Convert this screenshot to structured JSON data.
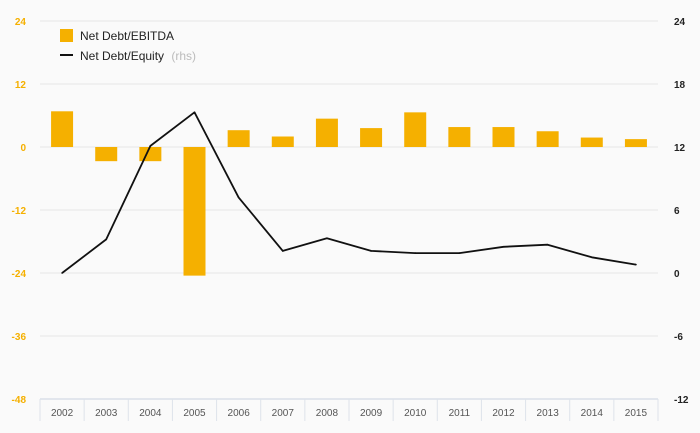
{
  "chart_data": {
    "type": "bar",
    "categories": [
      "2002",
      "2003",
      "2004",
      "2005",
      "2006",
      "2007",
      "2008",
      "2009",
      "2010",
      "2011",
      "2012",
      "2013",
      "2014",
      "2015"
    ],
    "series": [
      {
        "name": "Net Debt/EBITDA",
        "type": "bar",
        "axis": "left",
        "color": "#f5b000",
        "values": [
          6.8,
          -2.7,
          -2.7,
          -24.5,
          3.2,
          2.0,
          5.4,
          3.6,
          6.6,
          3.8,
          3.8,
          3.0,
          1.8,
          1.5
        ]
      },
      {
        "name": "Net Debt/Equity",
        "type": "line",
        "axis": "right",
        "color": "#111111",
        "values": [
          0.0,
          3.2,
          12.1,
          15.3,
          7.2,
          2.1,
          3.3,
          2.1,
          1.9,
          1.9,
          2.5,
          2.7,
          1.5,
          0.8
        ]
      }
    ],
    "legend": [
      {
        "label": "Net Debt/EBITDA",
        "note": ""
      },
      {
        "label": "Net Debt/Equity",
        "note": "(rhs)"
      }
    ],
    "y_left": {
      "ticks": [
        "24",
        "12",
        "0",
        "-12",
        "-24",
        "-36",
        "-48"
      ],
      "ylim": [
        -48,
        24
      ],
      "color": "#f5b000"
    },
    "y_right": {
      "ticks": [
        "24",
        "18",
        "12",
        "6",
        "0",
        "-6",
        "-12"
      ],
      "ylim": [
        -12,
        24
      ]
    },
    "grid": true,
    "legend_position": "top-left"
  }
}
